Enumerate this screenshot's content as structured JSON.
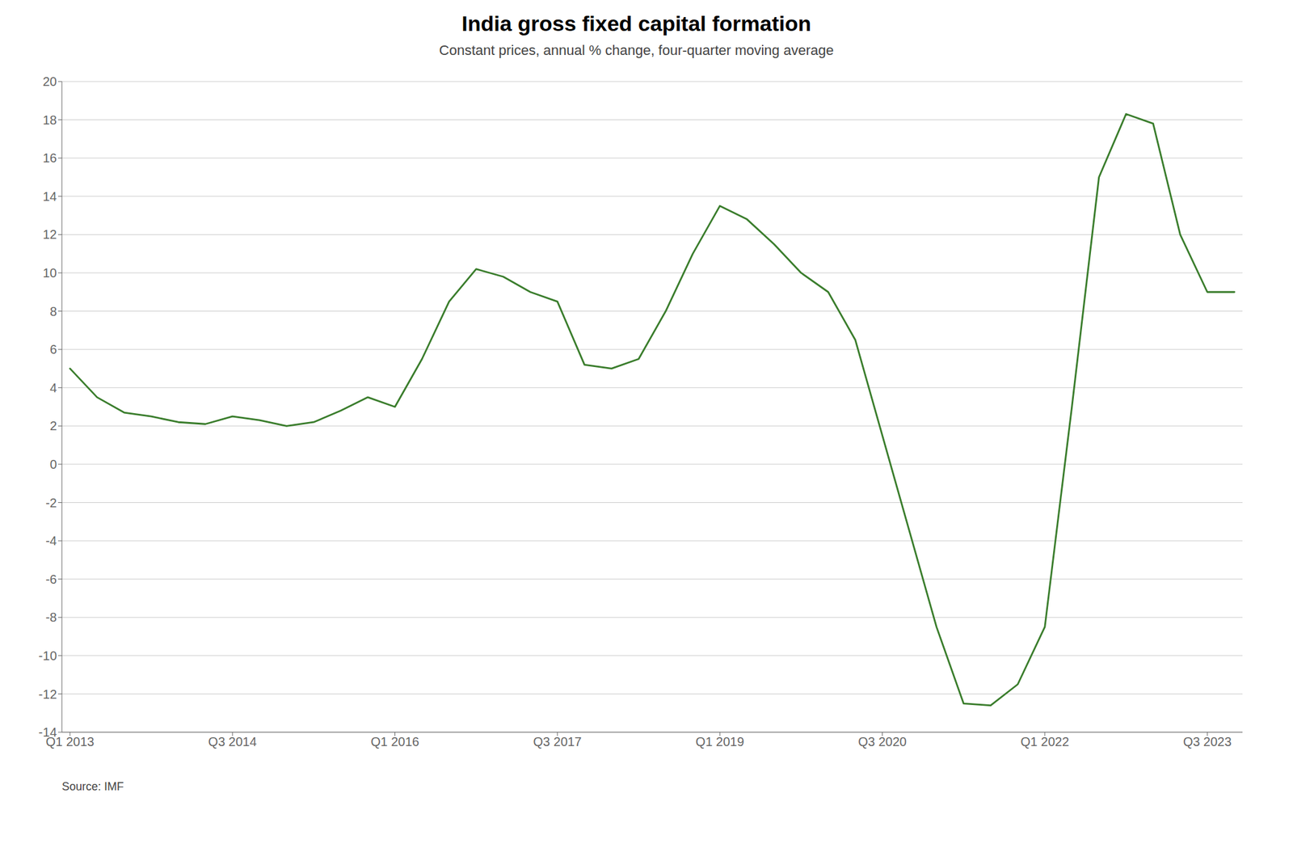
{
  "chart_data": {
    "type": "line",
    "title": "India gross fixed capital formation",
    "subtitle": "Constant prices, annual % change, four-quarter moving average",
    "annotations": [
      "Source: IMF"
    ],
    "x": [
      0,
      1,
      2,
      3,
      4,
      5,
      6,
      7,
      8,
      9,
      10,
      11,
      12,
      13,
      14,
      15,
      16,
      17,
      18,
      19,
      20,
      21,
      22,
      23,
      24,
      25,
      26,
      27,
      28,
      29,
      30,
      31,
      32,
      33,
      34,
      35,
      36,
      37,
      38,
      39,
      40,
      41,
      42,
      43
    ],
    "values": [
      5.0,
      3.5,
      2.7,
      2.5,
      2.2,
      2.1,
      2.5,
      2.3,
      2.0,
      2.2,
      2.8,
      3.5,
      3.0,
      5.5,
      8.5,
      10.2,
      9.8,
      9.0,
      8.5,
      5.2,
      5.0,
      5.5,
      8.0,
      11.0,
      13.5,
      12.8,
      11.5,
      10.0,
      9.0,
      6.5,
      1.5,
      -3.5,
      -8.5,
      -12.5,
      -12.6,
      -11.5,
      -8.5,
      3.0,
      15.0,
      18.3,
      17.8,
      12.0,
      9.0,
      9.0
    ],
    "color": "#3a7d2c",
    "xlim": [
      -0.3,
      43.3
    ],
    "xticks": [
      {
        "value": 0,
        "label": "Q1 2013"
      },
      {
        "value": 6,
        "label": "Q3 2014"
      },
      {
        "value": 12,
        "label": "Q1 2016"
      },
      {
        "value": 18,
        "label": "Q3 2017"
      },
      {
        "value": 24,
        "label": "Q1 2019"
      },
      {
        "value": 30,
        "label": "Q3 2020"
      },
      {
        "value": 36,
        "label": "Q1 2022"
      },
      {
        "value": 42,
        "label": "Q3 2023"
      }
    ],
    "ylim": [
      -14,
      20
    ],
    "yticks": [
      -14,
      -12,
      -10,
      -8,
      -6,
      -4,
      -2,
      0,
      2,
      4,
      6,
      8,
      10,
      12,
      14,
      16,
      18,
      20
    ],
    "grid": true
  }
}
